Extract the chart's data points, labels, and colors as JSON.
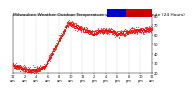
{
  "title": "Milwaukee Weather Outdoor Temperature vs Heat Index per Minute (24 Hours)",
  "background_color": "#ffffff",
  "plot_color": "#ff0000",
  "legend_blue": "#0000cc",
  "legend_red": "#cc0000",
  "ylim": [
    20,
    80
  ],
  "yticks": [
    20,
    30,
    40,
    50,
    60,
    70,
    80
  ],
  "xlim": [
    0,
    1440
  ],
  "n_points": 1440,
  "seed": 42,
  "grid_color": "#888888",
  "title_fontsize": 3.2,
  "tick_fontsize": 2.5,
  "marker_size": 0.3
}
